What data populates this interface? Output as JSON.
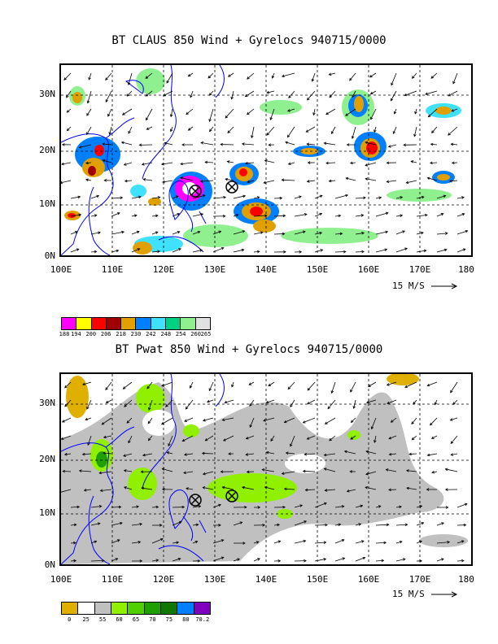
{
  "top": {
    "title": "BT CLAUS 850 Wind + Gyrelocs 940715/0000",
    "y_ticks": [
      "30N",
      "20N",
      "10N",
      "0N"
    ],
    "x_ticks": [
      "100E",
      "110E",
      "120E",
      "130E",
      "140E",
      "150E",
      "160E",
      "170E",
      "180"
    ],
    "scale_label": "15 M/S",
    "colorbar_colors": [
      "#ff00ff",
      "#ffff00",
      "#ff0000",
      "#a00000",
      "#e0a000",
      "#0080ff",
      "#40e0ff",
      "#00d080",
      "#90f090",
      "#e0e0e0"
    ],
    "colorbar_labels": [
      "188",
      "194",
      "200",
      "206",
      "218",
      "230",
      "242",
      "248",
      "254",
      "260",
      "265"
    ]
  },
  "bottom": {
    "title": "BT Pwat 850 Wind + Gyrelocs 940715/0000",
    "y_ticks": [
      "30N",
      "20N",
      "10N",
      "0N"
    ],
    "x_ticks": [
      "100E",
      "110E",
      "120E",
      "130E",
      "140E",
      "150E",
      "160E",
      "170E",
      "180"
    ],
    "scale_label": "15 M/S",
    "colorbar_colors": [
      "#e0b000",
      "#ffffff",
      "#c0c0c0",
      "#90f000",
      "#50d000",
      "#20a000",
      "#107800",
      "#0080ff",
      "#8000c0"
    ],
    "colorbar_labels": [
      "0",
      "25",
      "55",
      "60",
      "65",
      "70",
      "75",
      "80",
      "70.2"
    ]
  },
  "colors": {
    "coast": "#0000ff",
    "grid": "#000000"
  }
}
